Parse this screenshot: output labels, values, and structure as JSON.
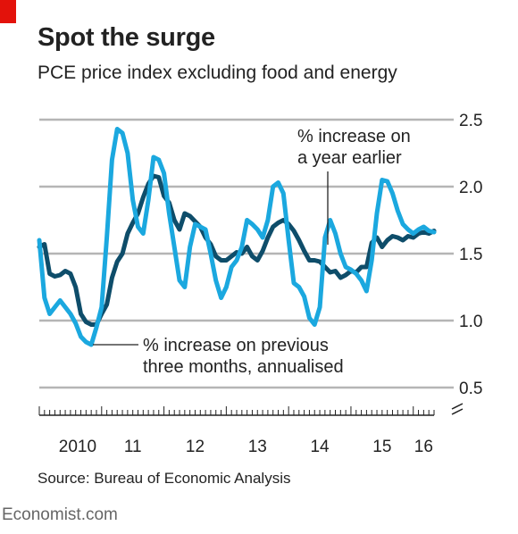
{
  "header": {
    "title": "Spot the surge",
    "subtitle": "PCE price index excluding food and energy"
  },
  "footer": {
    "source": "Source: Bureau of Economic Analysis",
    "brand": "Economist.com"
  },
  "colors": {
    "brand_red": "#e3120b",
    "yoy": "#0e4d6a",
    "three_month": "#1ba8df",
    "grid": "#b5b5b5"
  },
  "annotations": {
    "yoy_line1": "% increase on",
    "yoy_line2": "a year earlier",
    "three_line1": "% increase on previous",
    "three_line2": "three months, annualised"
  },
  "chart_data": {
    "type": "line",
    "title": "Spot the surge",
    "subtitle": "PCE price index excluding food and energy",
    "xlabel": "",
    "ylabel": "",
    "x_tick_labels": [
      "2010",
      "11",
      "12",
      "13",
      "14",
      "15",
      "16"
    ],
    "y_tick_labels": [
      "0.5",
      "1.0",
      "1.5",
      "2.0",
      "2.5"
    ],
    "y_ticks": [
      0.5,
      1.0,
      1.5,
      2.0,
      2.5
    ],
    "ylim": [
      0.5,
      2.5
    ],
    "xlim": [
      "2010-01",
      "2016-05"
    ],
    "y_axis_position": "right",
    "y_axis_break": true,
    "grid": true,
    "legend": "none",
    "x": [
      "2010-01",
      "2010-02",
      "2010-03",
      "2010-04",
      "2010-05",
      "2010-06",
      "2010-07",
      "2010-08",
      "2010-09",
      "2010-10",
      "2010-11",
      "2010-12",
      "2011-01",
      "2011-02",
      "2011-03",
      "2011-04",
      "2011-05",
      "2011-06",
      "2011-07",
      "2011-08",
      "2011-09",
      "2011-10",
      "2011-11",
      "2011-12",
      "2012-01",
      "2012-02",
      "2012-03",
      "2012-04",
      "2012-05",
      "2012-06",
      "2012-07",
      "2012-08",
      "2012-09",
      "2012-10",
      "2012-11",
      "2012-12",
      "2013-01",
      "2013-02",
      "2013-03",
      "2013-04",
      "2013-05",
      "2013-06",
      "2013-07",
      "2013-08",
      "2013-09",
      "2013-10",
      "2013-11",
      "2013-12",
      "2014-01",
      "2014-02",
      "2014-03",
      "2014-04",
      "2014-05",
      "2014-06",
      "2014-07",
      "2014-08",
      "2014-09",
      "2014-10",
      "2014-11",
      "2014-12",
      "2015-01",
      "2015-02",
      "2015-03",
      "2015-04",
      "2015-05",
      "2015-06",
      "2015-07",
      "2015-08",
      "2015-09",
      "2015-10",
      "2015-11",
      "2015-12",
      "2016-01",
      "2016-02",
      "2016-03",
      "2016-04",
      "2016-05"
    ],
    "series": [
      {
        "name": "% increase on a year earlier",
        "values": [
          1.55,
          1.57,
          1.35,
          1.33,
          1.34,
          1.37,
          1.35,
          1.25,
          1.05,
          0.99,
          0.97,
          0.97,
          1.05,
          1.12,
          1.32,
          1.44,
          1.5,
          1.65,
          1.73,
          1.8,
          1.92,
          2.02,
          2.08,
          2.07,
          1.93,
          1.88,
          1.75,
          1.68,
          1.8,
          1.78,
          1.74,
          1.7,
          1.62,
          1.57,
          1.48,
          1.45,
          1.45,
          1.48,
          1.51,
          1.5,
          1.55,
          1.48,
          1.45,
          1.52,
          1.62,
          1.7,
          1.73,
          1.75,
          1.72,
          1.67,
          1.6,
          1.52,
          1.45,
          1.45,
          1.44,
          1.4,
          1.36,
          1.37,
          1.32,
          1.34,
          1.37,
          1.36,
          1.4,
          1.4,
          1.58,
          1.62,
          1.55,
          1.6,
          1.63,
          1.62,
          1.6,
          1.63,
          1.62,
          1.65,
          1.66,
          1.65,
          1.67
        ]
      },
      {
        "name": "% increase on previous three months, annualised",
        "values": [
          1.6,
          1.17,
          1.05,
          1.1,
          1.15,
          1.1,
          1.05,
          0.98,
          0.88,
          0.84,
          0.82,
          0.95,
          1.1,
          1.62,
          2.2,
          2.43,
          2.4,
          2.25,
          1.9,
          1.7,
          1.65,
          1.9,
          2.22,
          2.2,
          2.1,
          1.8,
          1.55,
          1.3,
          1.25,
          1.55,
          1.72,
          1.7,
          1.68,
          1.5,
          1.3,
          1.17,
          1.25,
          1.4,
          1.45,
          1.55,
          1.75,
          1.72,
          1.68,
          1.62,
          1.75,
          2.0,
          2.03,
          1.95,
          1.6,
          1.28,
          1.25,
          1.18,
          1.02,
          0.97,
          1.1,
          1.62,
          1.75,
          1.65,
          1.5,
          1.4,
          1.38,
          1.35,
          1.3,
          1.22,
          1.45,
          1.8,
          2.05,
          2.04,
          1.95,
          1.82,
          1.72,
          1.68,
          1.65,
          1.68,
          1.7,
          1.67,
          1.66
        ]
      }
    ]
  }
}
